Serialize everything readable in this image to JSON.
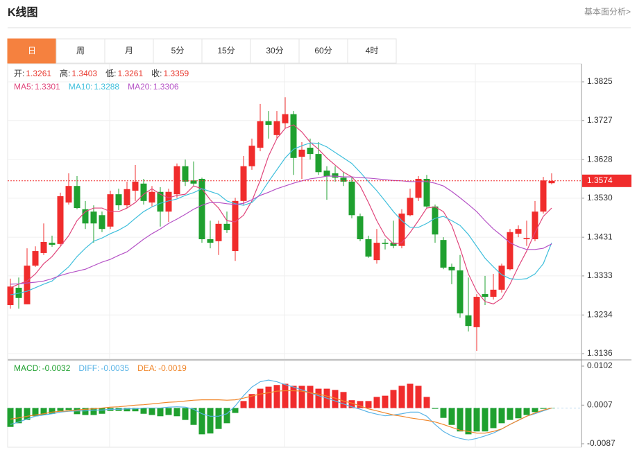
{
  "header": {
    "title": "K线图",
    "link": "基本面分析>"
  },
  "tabs": [
    "日",
    "周",
    "月",
    "5分",
    "15分",
    "30分",
    "60分",
    "4时"
  ],
  "active_tab": 0,
  "chart_data": [
    {
      "type": "candlestick",
      "info": [
        {
          "label": "开:",
          "value": 1.3261
        },
        {
          "label": "高:",
          "value": 1.3403
        },
        {
          "label": "低:",
          "value": 1.3261
        },
        {
          "label": "收:",
          "value": 1.3359
        }
      ],
      "info_color": "#e8382e",
      "up_color": "#f02c2c",
      "down_color": "#1fa02f",
      "open": [
        1.3259,
        1.3303,
        1.3261,
        1.3359,
        1.3391,
        1.3417,
        1.3414,
        1.3519,
        1.3561,
        1.3502,
        1.3496,
        1.3487,
        1.3458,
        1.354,
        1.3512,
        1.3549,
        1.3567,
        1.3519,
        1.3546,
        1.3496,
        1.354,
        1.3611,
        1.3575,
        1.3579,
        1.3426,
        1.3421,
        1.3465,
        1.3396,
        1.3523,
        1.3611,
        1.3658,
        1.3725,
        1.369,
        1.372,
        1.3743,
        1.3635,
        1.3658,
        1.3642,
        1.36,
        1.3593,
        1.3582,
        1.3572,
        1.3484,
        1.3426,
        1.3373,
        1.3417,
        1.3417,
        1.3409,
        1.3487,
        1.3531,
        1.3579,
        1.3509,
        1.3424,
        1.3356,
        1.3347,
        1.3233,
        1.3203,
        1.3287,
        1.328,
        1.3298,
        1.335,
        1.344,
        1.3426,
        1.3426,
        1.3496,
        1.3568
      ],
      "high": [
        1.3326,
        1.3329,
        1.3403,
        1.3408,
        1.3466,
        1.3435,
        1.3544,
        1.3593,
        1.3586,
        1.3523,
        1.3512,
        1.3496,
        1.3549,
        1.3554,
        1.3572,
        1.3614,
        1.3579,
        1.3561,
        1.3558,
        1.3554,
        1.3618,
        1.3628,
        1.3623,
        1.3582,
        1.3473,
        1.3473,
        1.3496,
        1.3531,
        1.3637,
        1.3681,
        1.3769,
        1.3751,
        1.3751,
        1.3786,
        1.3751,
        1.3672,
        1.3681,
        1.3672,
        1.3611,
        1.3611,
        1.3596,
        1.3584,
        1.3491,
        1.3435,
        1.3452,
        1.3426,
        1.3473,
        1.3502,
        1.3554,
        1.3586,
        1.3589,
        1.3514,
        1.3431,
        1.3364,
        1.3386,
        1.3329,
        1.3287,
        1.3333,
        1.3338,
        1.3364,
        1.3452,
        1.3461,
        1.3473,
        1.3523,
        1.3584,
        1.3593
      ],
      "low": [
        1.325,
        1.325,
        1.3261,
        1.3356,
        1.3386,
        1.3407,
        1.341,
        1.3514,
        1.3502,
        1.3452,
        1.3417,
        1.3444,
        1.3452,
        1.35,
        1.3505,
        1.3523,
        1.3514,
        1.3509,
        1.3458,
        1.347,
        1.3531,
        1.3561,
        1.3561,
        1.3417,
        1.3403,
        1.3386,
        1.3442,
        1.3371,
        1.3514,
        1.3602,
        1.3649,
        1.3681,
        1.3681,
        1.3707,
        1.3589,
        1.3579,
        1.3628,
        1.3589,
        1.3526,
        1.3572,
        1.3561,
        1.3479,
        1.3421,
        1.3379,
        1.3364,
        1.34,
        1.3403,
        1.3403,
        1.3484,
        1.3523,
        1.3505,
        1.3417,
        1.335,
        1.3312,
        1.3227,
        1.3192,
        1.3143,
        1.3259,
        1.3273,
        1.3291,
        1.3347,
        1.3431,
        1.3409,
        1.3421,
        1.3491,
        1.3565
      ],
      "close": [
        1.3306,
        1.3277,
        1.3359,
        1.3396,
        1.3419,
        1.3412,
        1.3535,
        1.3561,
        1.3505,
        1.3466,
        1.3466,
        1.3452,
        1.354,
        1.3512,
        1.3553,
        1.3572,
        1.3523,
        1.3546,
        1.3496,
        1.3546,
        1.3611,
        1.3572,
        1.3567,
        1.3426,
        1.3417,
        1.3465,
        1.3449,
        1.3523,
        1.3611,
        1.3663,
        1.3725,
        1.3716,
        1.3725,
        1.3743,
        1.3632,
        1.3653,
        1.3642,
        1.3596,
        1.3586,
        1.3582,
        1.3572,
        1.3487,
        1.3426,
        1.3382,
        1.3417,
        1.3414,
        1.3409,
        1.3491,
        1.3531,
        1.3579,
        1.3509,
        1.3438,
        1.3354,
        1.3347,
        1.3238,
        1.3206,
        1.328,
        1.328,
        1.3298,
        1.3359,
        1.3444,
        1.3452,
        1.3429,
        1.3496,
        1.3575,
        1.3574
      ],
      "series": [
        {
          "name": "MA5:",
          "legend_value": 1.3301,
          "color": "#e0457b",
          "values": [
            1.3303,
            1.3312,
            1.332,
            1.3338,
            1.3364,
            1.3382,
            1.3408,
            1.3435,
            1.3473,
            1.3496,
            1.3505,
            1.3505,
            1.3496,
            1.3496,
            1.3505,
            1.3519,
            1.354,
            1.3554,
            1.354,
            1.3531,
            1.3537,
            1.354,
            1.3561,
            1.3554,
            1.3526,
            1.3505,
            1.3473,
            1.347,
            1.3487,
            1.3523,
            1.3575,
            1.3637,
            1.3681,
            1.3707,
            1.3716,
            1.3698,
            1.3672,
            1.3654,
            1.3632,
            1.3614,
            1.3596,
            1.3584,
            1.3561,
            1.3519,
            1.3473,
            1.3435,
            1.3414,
            1.3417,
            1.3443,
            1.3473,
            1.3505,
            1.3508,
            1.3496,
            1.3461,
            1.3403,
            1.3338,
            1.3294,
            1.3268,
            1.3262,
            1.3276,
            1.3312,
            1.3356,
            1.3396,
            1.3443,
            1.3484,
            1.3505
          ]
        },
        {
          "name": "MA10:",
          "legend_value": 1.3288,
          "color": "#3fbfdc",
          "values": [
            1.3285,
            1.3289,
            1.3294,
            1.3303,
            1.3312,
            1.332,
            1.3338,
            1.3356,
            1.3382,
            1.3403,
            1.3421,
            1.3429,
            1.344,
            1.3449,
            1.3461,
            1.3479,
            1.3496,
            1.3508,
            1.3517,
            1.3523,
            1.3528,
            1.3537,
            1.3544,
            1.3554,
            1.3547,
            1.354,
            1.3523,
            1.3516,
            1.3512,
            1.3519,
            1.354,
            1.3572,
            1.3602,
            1.3632,
            1.3654,
            1.3663,
            1.367,
            1.3669,
            1.366,
            1.3646,
            1.3632,
            1.3618,
            1.3596,
            1.3572,
            1.3549,
            1.3523,
            1.3496,
            1.3473,
            1.3456,
            1.3456,
            1.3466,
            1.3479,
            1.3484,
            1.3473,
            1.3461,
            1.3438,
            1.3408,
            1.3378,
            1.3356,
            1.3336,
            1.3326,
            1.3324,
            1.3326,
            1.3338,
            1.3364,
            1.3417
          ]
        },
        {
          "name": "MA20:",
          "legend_value": 1.3306,
          "color": "#b552c6",
          "values": [
            1.3312,
            1.3313,
            1.3315,
            1.3317,
            1.332,
            1.3326,
            1.3334,
            1.334,
            1.3345,
            1.335,
            1.3359,
            1.3368,
            1.3375,
            1.3385,
            1.3394,
            1.341,
            1.3426,
            1.344,
            1.3452,
            1.3466,
            1.3477,
            1.3489,
            1.3502,
            1.3512,
            1.3519,
            1.3519,
            1.3516,
            1.3514,
            1.3517,
            1.3526,
            1.3537,
            1.3545,
            1.3554,
            1.3561,
            1.3568,
            1.3574,
            1.3579,
            1.3582,
            1.3586,
            1.3586,
            1.3584,
            1.3584,
            1.3582,
            1.3581,
            1.3579,
            1.3577,
            1.3575,
            1.3574,
            1.3572,
            1.3572,
            1.3572,
            1.3568,
            1.3561,
            1.3547,
            1.3531,
            1.3514,
            1.3496,
            1.3473,
            1.3452,
            1.3435,
            1.3417,
            1.3407,
            1.34,
            1.34,
            1.3403,
            1.3414
          ]
        }
      ],
      "last_price": 1.3574,
      "last_price_color": "#f02c2c",
      "ylim": [
        1.3136,
        1.3825
      ],
      "yticks": [
        1.3825,
        1.3727,
        1.3628,
        {
          "value": 1.353,
          "label": "1.3530"
        },
        1.3431,
        1.3333,
        1.3234,
        1.3136
      ],
      "grid": true
    },
    {
      "type": "macd",
      "up_color": "#f02c2c",
      "down_color": "#1fa02f",
      "series": [
        {
          "name": "MACD:",
          "legend_value": -0.0032,
          "color": "#1fa02f",
          "style": "bar",
          "values": [
            -0.0046,
            -0.0037,
            -0.0029,
            -0.002,
            -0.0017,
            -0.0014,
            -0.0007,
            -0.0005,
            -0.0015,
            -0.0017,
            -0.0017,
            -0.0014,
            -0.0007,
            -0.0007,
            -0.0008,
            -0.0008,
            -0.0014,
            -0.0017,
            -0.002,
            -0.0017,
            -0.002,
            -0.0029,
            -0.0041,
            -0.0064,
            -0.0062,
            -0.0051,
            -0.0037,
            -0.0012,
            0.0017,
            0.0034,
            0.0047,
            0.0052,
            0.0056,
            0.0059,
            0.0054,
            0.0054,
            0.0054,
            0.0047,
            0.0047,
            0.0044,
            0.0039,
            0.0019,
            0.0017,
            0.0017,
            0.0027,
            0.003,
            0.0044,
            0.0054,
            0.0059,
            0.0054,
            0.0027,
            -0.0002,
            -0.0024,
            -0.0041,
            -0.0057,
            -0.0064,
            -0.0057,
            -0.0057,
            -0.0049,
            -0.0037,
            -0.0029,
            -0.0025,
            -0.0017,
            -0.001,
            -0.0002,
            -0.0001
          ]
        },
        {
          "name": "DIFF:",
          "legend_value": -0.0035,
          "color": "#5ab4e6",
          "style": "line",
          "values": [
            -0.004,
            -0.0034,
            -0.0027,
            -0.002,
            -0.0017,
            -0.0014,
            -0.001,
            -0.0008,
            -0.0007,
            -0.0007,
            -0.0005,
            -0.0005,
            -0.0003,
            -0.0003,
            -0.0002,
            -0.0002,
            0.0,
            0.0,
            0.0,
            0.0002,
            0.0003,
            0.0002,
            -0.0003,
            -0.0014,
            -0.002,
            -0.002,
            -0.0014,
            0.0005,
            0.003,
            0.0051,
            0.0064,
            0.0068,
            0.0064,
            0.0057,
            0.0051,
            0.0044,
            0.0037,
            0.003,
            0.0024,
            0.0017,
            0.001,
            0.0003,
            -0.0003,
            -0.001,
            -0.0015,
            -0.0019,
            -0.0017,
            -0.0014,
            -0.001,
            -0.001,
            -0.002,
            -0.004,
            -0.0057,
            -0.0068,
            -0.0074,
            -0.0078,
            -0.0074,
            -0.0068,
            -0.0061,
            -0.0051,
            -0.004,
            -0.003,
            -0.002,
            -0.0014,
            -0.0007,
            0.0
          ]
        },
        {
          "name": "DEA:",
          "legend_value": -0.0019,
          "color": "#f0862a",
          "style": "line",
          "values": [
            -0.0027,
            -0.0024,
            -0.002,
            -0.0017,
            -0.0014,
            -0.001,
            -0.0008,
            -0.0007,
            -0.0005,
            -0.0003,
            -0.0002,
            0.0,
            0.0002,
            0.0003,
            0.0005,
            0.0007,
            0.0008,
            0.001,
            0.0012,
            0.0014,
            0.0015,
            0.0017,
            0.0019,
            0.002,
            0.002,
            0.002,
            0.0019,
            0.002,
            0.0024,
            0.0029,
            0.0034,
            0.0037,
            0.0041,
            0.0042,
            0.0042,
            0.0041,
            0.0037,
            0.0034,
            0.0029,
            0.0024,
            0.0017,
            0.0012,
            0.0005,
            -0.0002,
            -0.0007,
            -0.0012,
            -0.0017,
            -0.002,
            -0.0024,
            -0.0027,
            -0.003,
            -0.0034,
            -0.004,
            -0.0047,
            -0.0054,
            -0.0057,
            -0.0061,
            -0.0061,
            -0.0057,
            -0.0051,
            -0.004,
            -0.003,
            -0.002,
            -0.0012,
            -0.0005,
            0.0
          ]
        }
      ],
      "ylim": [
        -0.0087,
        0.0102
      ],
      "yticks": [
        0.0102,
        0.0007,
        -0.0087
      ]
    }
  ]
}
